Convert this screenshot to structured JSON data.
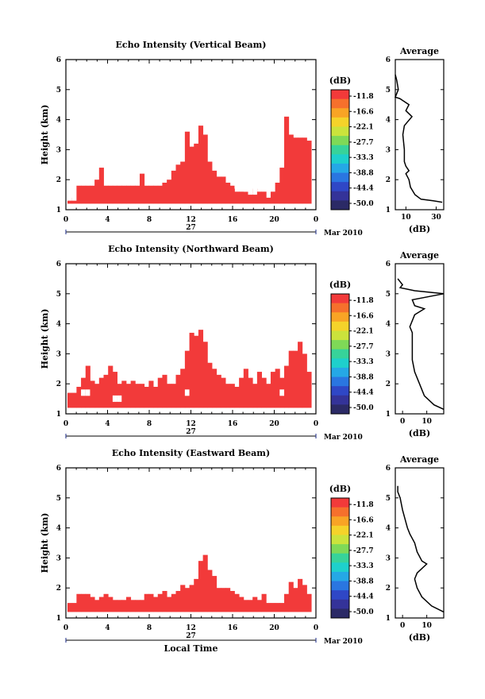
{
  "chart_data": [
    {
      "type": "heatmap",
      "title": "Echo Intensity (Vertical Beam)",
      "ylabel": "Height (km)",
      "xlabel": "",
      "date_label": "27",
      "month_label": "Mar 2010",
      "xlim": [
        0,
        24
      ],
      "ylim": [
        1,
        6
      ],
      "x_ticks": [
        "0",
        "4",
        "8",
        "12",
        "16",
        "20",
        "0"
      ],
      "y_ticks": [
        "1",
        "2",
        "3",
        "4",
        "5",
        "6"
      ],
      "colorbar": {
        "unit": "(dB)",
        "labels": [
          "-11.8",
          "-16.6",
          "-22.1",
          "-27.7",
          "-33.3",
          "-38.8",
          "-44.4",
          "-50.0"
        ]
      },
      "echo_color": "#f23a3a",
      "columns_top_km": [
        1.4,
        1.4,
        1.8,
        1.8,
        1.8,
        1.8,
        2.0,
        2.4,
        1.8,
        1.8,
        1.8,
        1.8,
        1.8,
        1.8,
        1.8,
        1.8,
        2.2,
        1.8,
        1.8,
        1.8,
        1.8,
        1.9,
        2.0,
        2.3,
        2.5,
        2.6,
        3.6,
        3.1,
        3.2,
        3.8,
        3.5,
        2.6,
        2.3,
        2.1,
        2.1,
        1.9,
        1.8,
        1.6,
        1.6,
        1.6,
        1.6,
        1.7,
        1.6,
        1.6,
        1.4,
        1.6,
        1.9,
        2.4,
        4.1,
        3.5,
        3.4,
        3.4,
        3.4,
        3.3
      ],
      "gaps": [
        [
          0,
          1
        ],
        [
          1,
          1
        ],
        [
          37,
          5
        ],
        [
          38,
          5
        ],
        [
          39,
          4
        ],
        [
          40,
          3
        ],
        [
          41,
          3
        ]
      ],
      "average_profile": {
        "title": "Average",
        "xlabel": "(dB)",
        "ylabel": "",
        "xlim": [
          3,
          35
        ],
        "x_ticks": [
          "10",
          "30"
        ],
        "y_ticks": [
          "1",
          "2",
          "3",
          "4",
          "5",
          "6"
        ],
        "points": [
          [
            34,
            1.25
          ],
          [
            28,
            1.3
          ],
          [
            20,
            1.35
          ],
          [
            16,
            1.5
          ],
          [
            13,
            1.75
          ],
          [
            12,
            2.0
          ],
          [
            10,
            2.2
          ],
          [
            12,
            2.3
          ],
          [
            10,
            2.45
          ],
          [
            9,
            2.6
          ],
          [
            9,
            3.0
          ],
          [
            8,
            3.5
          ],
          [
            9,
            3.8
          ],
          [
            14,
            4.1
          ],
          [
            10,
            4.3
          ],
          [
            12,
            4.5
          ],
          [
            6,
            4.7
          ],
          [
            3,
            4.75
          ],
          [
            5,
            5.0
          ],
          [
            4,
            5.3
          ],
          [
            3,
            5.5
          ]
        ]
      }
    },
    {
      "type": "heatmap",
      "title": "Echo Intensity (Northward Beam)",
      "ylabel": "Height (km)",
      "xlabel": "",
      "date_label": "27",
      "month_label": "Mar 2010",
      "xlim": [
        0,
        24
      ],
      "ylim": [
        1,
        6
      ],
      "x_ticks": [
        "0",
        "4",
        "8",
        "12",
        "16",
        "20",
        "0"
      ],
      "y_ticks": [
        "1",
        "2",
        "3",
        "4",
        "5",
        "6"
      ],
      "colorbar": {
        "unit": "(dB)",
        "labels": [
          "-11.8",
          "-16.6",
          "-22.1",
          "-27.7",
          "-33.3",
          "-38.8",
          "-44.4",
          "-50.0"
        ]
      },
      "echo_color": "#f23a3a",
      "columns_top_km": [
        1.7,
        1.7,
        1.9,
        2.2,
        2.6,
        2.1,
        2.0,
        2.2,
        2.3,
        2.6,
        2.4,
        2.0,
        2.1,
        2.0,
        2.1,
        2.0,
        2.0,
        1.9,
        2.1,
        1.9,
        2.2,
        2.3,
        2.0,
        2.0,
        2.3,
        2.5,
        3.1,
        3.7,
        3.6,
        3.8,
        3.4,
        2.7,
        2.5,
        2.3,
        2.2,
        2.0,
        2.0,
        1.9,
        2.2,
        2.5,
        2.2,
        2.0,
        2.4,
        2.2,
        2.0,
        2.4,
        2.5,
        2.2,
        2.6,
        3.1,
        3.1,
        3.4,
        3.0,
        2.4
      ],
      "gaps": [
        [
          3,
          4
        ],
        [
          4,
          4
        ],
        [
          10,
          2
        ],
        [
          11,
          2
        ],
        [
          26,
          4
        ],
        [
          47,
          4
        ]
      ],
      "average_profile": {
        "title": "Average",
        "xlabel": "(dB)",
        "ylabel": "",
        "xlim": [
          -3,
          17
        ],
        "x_ticks": [
          "0",
          "10"
        ],
        "y_ticks": [
          "1",
          "2",
          "3",
          "4",
          "5",
          "6"
        ],
        "points": [
          [
            17,
            1.15
          ],
          [
            13,
            1.3
          ],
          [
            9,
            1.6
          ],
          [
            7,
            2.0
          ],
          [
            5,
            2.4
          ],
          [
            4,
            2.8
          ],
          [
            4,
            3.3
          ],
          [
            4,
            3.7
          ],
          [
            3,
            3.9
          ],
          [
            5,
            4.3
          ],
          [
            9,
            4.5
          ],
          [
            5,
            4.6
          ],
          [
            4,
            4.8
          ],
          [
            17,
            5.0
          ],
          [
            5,
            5.1
          ],
          [
            -1,
            5.2
          ],
          [
            0,
            5.3
          ],
          [
            -1,
            5.4
          ],
          [
            -2,
            5.5
          ]
        ]
      }
    },
    {
      "type": "heatmap",
      "title": "Echo Intensity (Eastward Beam)",
      "ylabel": "Height (km)",
      "xlabel": "Local Time",
      "date_label": "27",
      "month_label": "Mar 2010",
      "xlim": [
        0,
        24
      ],
      "ylim": [
        1,
        6
      ],
      "x_ticks": [
        "0",
        "4",
        "8",
        "12",
        "16",
        "20",
        "0"
      ],
      "y_ticks": [
        "1",
        "2",
        "3",
        "4",
        "5",
        "6"
      ],
      "colorbar": {
        "unit": "(dB)",
        "labels": [
          "-11.8",
          "-16.6",
          "-22.1",
          "-27.7",
          "-33.3",
          "-38.8",
          "-44.4",
          "-50.0"
        ]
      },
      "echo_color": "#f23a3a",
      "columns_top_km": [
        1.5,
        1.5,
        1.8,
        1.8,
        1.8,
        1.7,
        1.6,
        1.7,
        1.8,
        1.7,
        1.6,
        1.6,
        1.6,
        1.7,
        1.6,
        1.6,
        1.6,
        1.8,
        1.8,
        1.7,
        1.8,
        1.9,
        1.7,
        1.8,
        1.9,
        2.1,
        2.0,
        2.1,
        2.3,
        2.9,
        3.1,
        2.6,
        2.4,
        2.0,
        2.0,
        2.0,
        1.9,
        1.8,
        1.7,
        1.6,
        1.6,
        1.7,
        1.6,
        1.8,
        1.5,
        1.5,
        1.5,
        1.5,
        1.8,
        2.2,
        2.0,
        2.3,
        2.1,
        1.8
      ],
      "gaps": [],
      "average_profile": {
        "title": "Average",
        "xlabel": "(dB)",
        "ylabel": "",
        "xlim": [
          -3,
          17
        ],
        "x_ticks": [
          "0",
          "10"
        ],
        "y_ticks": [
          "1",
          "2",
          "3",
          "4",
          "5",
          "6"
        ],
        "points": [
          [
            17,
            1.2
          ],
          [
            12,
            1.4
          ],
          [
            8,
            1.7
          ],
          [
            6,
            2.0
          ],
          [
            5,
            2.3
          ],
          [
            6,
            2.5
          ],
          [
            10,
            2.8
          ],
          [
            8,
            2.9
          ],
          [
            6,
            3.2
          ],
          [
            5,
            3.5
          ],
          [
            3,
            3.8
          ],
          [
            2,
            4.0
          ],
          [
            1,
            4.3
          ],
          [
            0,
            4.6
          ],
          [
            -1,
            5.0
          ],
          [
            -2,
            5.2
          ],
          [
            -2,
            5.4
          ]
        ]
      }
    }
  ]
}
